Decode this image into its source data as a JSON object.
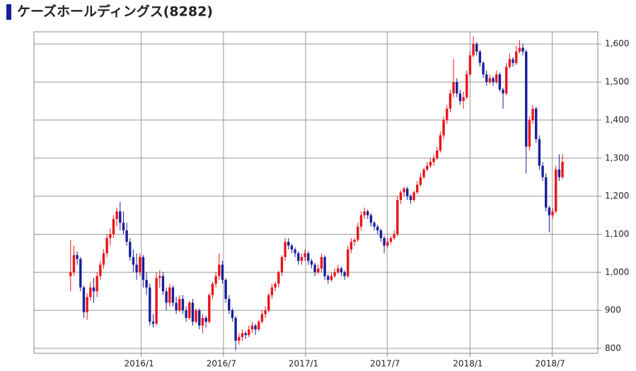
{
  "chart_data": {
    "type": "candlestick",
    "title": "ケーズホールディングス(8282)",
    "up_color": "#e8161b",
    "down_color": "#1a1f9a",
    "grid": true,
    "xlim": [
      -11.1,
      159.7
    ],
    "xticks": [
      {
        "value": 21.4,
        "label": "2016/1"
      },
      {
        "value": 46.3,
        "label": "2016/7"
      },
      {
        "value": 71.2,
        "label": "2017/1"
      },
      {
        "value": 95.9,
        "label": "2017/7"
      },
      {
        "value": 121,
        "label": "2018/1"
      },
      {
        "value": 145.9,
        "label": "2018/7"
      }
    ],
    "ylim": [
      787,
      1632
    ],
    "yticks": [
      {
        "value": 800,
        "label": "800"
      },
      {
        "value": 900,
        "label": "900"
      },
      {
        "value": 1000,
        "label": "1,000"
      },
      {
        "value": 1100,
        "label": "1,100"
      },
      {
        "value": 1200,
        "label": "1,200"
      },
      {
        "value": 1300,
        "label": "1,300"
      },
      {
        "value": 1400,
        "label": "1,400"
      },
      {
        "value": 1500,
        "label": "1,500"
      },
      {
        "value": 1600,
        "label": "1,600"
      }
    ],
    "candles": [
      [
        990,
        1085,
        950,
        1000
      ],
      [
        1000,
        1070,
        990,
        1045
      ],
      [
        1045,
        1055,
        1020,
        1035
      ],
      [
        1035,
        1040,
        950,
        960
      ],
      [
        960,
        965,
        880,
        895
      ],
      [
        895,
        945,
        875,
        935
      ],
      [
        935,
        975,
        925,
        960
      ],
      [
        960,
        985,
        920,
        950
      ],
      [
        950,
        1000,
        935,
        990
      ],
      [
        990,
        1030,
        980,
        1020
      ],
      [
        1020,
        1060,
        1010,
        1050
      ],
      [
        1050,
        1100,
        1040,
        1090
      ],
      [
        1090,
        1115,
        1070,
        1100
      ],
      [
        1100,
        1150,
        1090,
        1140
      ],
      [
        1140,
        1170,
        1120,
        1160
      ],
      [
        1160,
        1185,
        1110,
        1130
      ],
      [
        1130,
        1160,
        1100,
        1110
      ],
      [
        1110,
        1130,
        1070,
        1080
      ],
      [
        1080,
        1090,
        1030,
        1040
      ],
      [
        1040,
        1060,
        1000,
        1020
      ],
      [
        1020,
        1050,
        980,
        1000
      ],
      [
        1000,
        1050,
        990,
        1040
      ],
      [
        1040,
        1045,
        960,
        980
      ],
      [
        980,
        1000,
        940,
        960
      ],
      [
        960,
        970,
        860,
        870
      ],
      [
        870,
        890,
        855,
        865
      ],
      [
        865,
        1000,
        860,
        985
      ],
      [
        985,
        1005,
        960,
        990
      ],
      [
        990,
        1000,
        940,
        950
      ],
      [
        950,
        960,
        900,
        920
      ],
      [
        920,
        970,
        910,
        960
      ],
      [
        960,
        965,
        910,
        920
      ],
      [
        920,
        935,
        890,
        900
      ],
      [
        900,
        940,
        895,
        930
      ],
      [
        930,
        940,
        890,
        900
      ],
      [
        900,
        910,
        870,
        880
      ],
      [
        880,
        925,
        875,
        920
      ],
      [
        920,
        930,
        860,
        870
      ],
      [
        870,
        905,
        865,
        900
      ],
      [
        900,
        905,
        850,
        860
      ],
      [
        860,
        890,
        840,
        880
      ],
      [
        880,
        885,
        855,
        870
      ],
      [
        870,
        945,
        865,
        940
      ],
      [
        940,
        975,
        930,
        970
      ],
      [
        970,
        1000,
        960,
        990
      ],
      [
        990,
        1050,
        980,
        1020
      ],
      [
        1020,
        1030,
        970,
        980
      ],
      [
        980,
        985,
        920,
        930
      ],
      [
        930,
        940,
        890,
        900
      ],
      [
        900,
        905,
        870,
        880
      ],
      [
        880,
        885,
        795,
        820
      ],
      [
        820,
        840,
        810,
        830
      ],
      [
        830,
        850,
        820,
        840
      ],
      [
        840,
        845,
        825,
        835
      ],
      [
        835,
        860,
        830,
        850
      ],
      [
        850,
        870,
        840,
        860
      ],
      [
        860,
        865,
        835,
        850
      ],
      [
        850,
        875,
        845,
        870
      ],
      [
        870,
        900,
        865,
        890
      ],
      [
        890,
        910,
        880,
        900
      ],
      [
        900,
        945,
        895,
        940
      ],
      [
        940,
        970,
        930,
        960
      ],
      [
        960,
        975,
        950,
        970
      ],
      [
        970,
        1005,
        960,
        1000
      ],
      [
        1000,
        1045,
        990,
        1040
      ],
      [
        1040,
        1090,
        1030,
        1080
      ],
      [
        1080,
        1090,
        1060,
        1070
      ],
      [
        1070,
        1075,
        1050,
        1060
      ],
      [
        1060,
        1065,
        1040,
        1050
      ],
      [
        1050,
        1055,
        1020,
        1030
      ],
      [
        1030,
        1050,
        1020,
        1040
      ],
      [
        1040,
        1060,
        1030,
        1050
      ],
      [
        1050,
        1055,
        1020,
        1030
      ],
      [
        1030,
        1035,
        1010,
        1020
      ],
      [
        1020,
        1025,
        990,
        1000
      ],
      [
        1000,
        1020,
        995,
        1010
      ],
      [
        1010,
        1050,
        1000,
        1040
      ],
      [
        1040,
        1045,
        980,
        990
      ],
      [
        990,
        995,
        970,
        980
      ],
      [
        980,
        1000,
        975,
        990
      ],
      [
        990,
        1010,
        985,
        1000
      ],
      [
        1000,
        1020,
        995,
        1010
      ],
      [
        1010,
        1015,
        990,
        1000
      ],
      [
        1000,
        1005,
        980,
        990
      ],
      [
        990,
        1070,
        985,
        1060
      ],
      [
        1060,
        1090,
        1050,
        1080
      ],
      [
        1080,
        1090,
        1070,
        1085
      ],
      [
        1085,
        1130,
        1080,
        1120
      ],
      [
        1120,
        1160,
        1110,
        1150
      ],
      [
        1150,
        1170,
        1140,
        1160
      ],
      [
        1160,
        1165,
        1140,
        1150
      ],
      [
        1150,
        1155,
        1120,
        1130
      ],
      [
        1130,
        1135,
        1110,
        1120
      ],
      [
        1120,
        1125,
        1100,
        1110
      ],
      [
        1110,
        1115,
        1080,
        1090
      ],
      [
        1090,
        1095,
        1050,
        1070
      ],
      [
        1070,
        1090,
        1065,
        1080
      ],
      [
        1080,
        1095,
        1075,
        1090
      ],
      [
        1090,
        1110,
        1085,
        1100
      ],
      [
        1100,
        1200,
        1095,
        1190
      ],
      [
        1190,
        1215,
        1180,
        1210
      ],
      [
        1210,
        1225,
        1200,
        1220
      ],
      [
        1220,
        1225,
        1190,
        1200
      ],
      [
        1200,
        1205,
        1180,
        1190
      ],
      [
        1190,
        1215,
        1185,
        1210
      ],
      [
        1210,
        1240,
        1205,
        1230
      ],
      [
        1230,
        1260,
        1225,
        1250
      ],
      [
        1250,
        1275,
        1245,
        1270
      ],
      [
        1270,
        1290,
        1265,
        1280
      ],
      [
        1280,
        1300,
        1275,
        1290
      ],
      [
        1290,
        1310,
        1280,
        1300
      ],
      [
        1300,
        1330,
        1295,
        1320
      ],
      [
        1320,
        1370,
        1315,
        1360
      ],
      [
        1360,
        1410,
        1350,
        1400
      ],
      [
        1400,
        1440,
        1390,
        1430
      ],
      [
        1430,
        1480,
        1420,
        1470
      ],
      [
        1470,
        1560,
        1460,
        1500
      ],
      [
        1500,
        1510,
        1460,
        1470
      ],
      [
        1470,
        1480,
        1440,
        1450
      ],
      [
        1450,
        1475,
        1430,
        1460
      ],
      [
        1460,
        1530,
        1455,
        1520
      ],
      [
        1520,
        1580,
        1515,
        1570
      ],
      [
        1570,
        1620,
        1565,
        1600
      ],
      [
        1600,
        1605,
        1570,
        1580
      ],
      [
        1580,
        1585,
        1540,
        1550
      ],
      [
        1550,
        1555,
        1510,
        1520
      ],
      [
        1520,
        1530,
        1490,
        1500
      ],
      [
        1500,
        1520,
        1495,
        1510
      ],
      [
        1510,
        1515,
        1490,
        1500
      ],
      [
        1500,
        1530,
        1495,
        1520
      ],
      [
        1520,
        1525,
        1475,
        1480
      ],
      [
        1480,
        1485,
        1430,
        1470
      ],
      [
        1470,
        1550,
        1465,
        1540
      ],
      [
        1540,
        1575,
        1535,
        1560
      ],
      [
        1560,
        1565,
        1540,
        1550
      ],
      [
        1550,
        1595,
        1545,
        1580
      ],
      [
        1580,
        1610,
        1575,
        1590
      ],
      [
        1590,
        1600,
        1570,
        1580
      ],
      [
        1580,
        1585,
        1260,
        1330
      ],
      [
        1330,
        1410,
        1320,
        1400
      ],
      [
        1400,
        1440,
        1390,
        1430
      ],
      [
        1430,
        1435,
        1340,
        1350
      ],
      [
        1350,
        1360,
        1270,
        1280
      ],
      [
        1280,
        1290,
        1240,
        1250
      ],
      [
        1250,
        1260,
        1160,
        1170
      ],
      [
        1170,
        1175,
        1105,
        1150
      ],
      [
        1150,
        1170,
        1140,
        1160
      ],
      [
        1160,
        1280,
        1155,
        1270
      ],
      [
        1270,
        1310,
        1240,
        1250
      ],
      [
        1250,
        1310,
        1245,
        1290
      ]
    ]
  }
}
